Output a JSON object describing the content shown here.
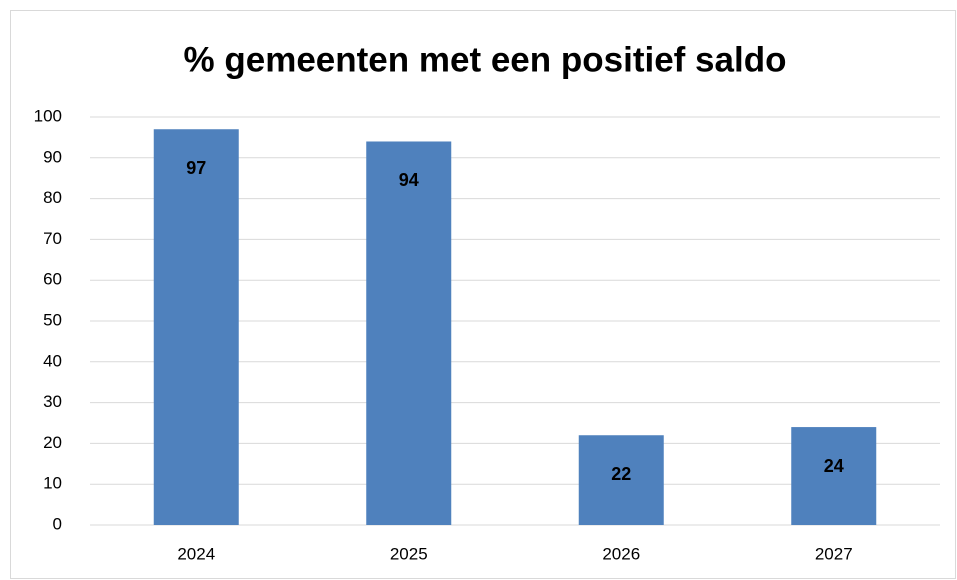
{
  "chart_data": {
    "type": "bar",
    "title": "% gemeenten met een positief saldo",
    "categories": [
      "2024",
      "2025",
      "2026",
      "2027"
    ],
    "values": [
      97,
      94,
      22,
      24
    ],
    "color": "#4f81bd",
    "ylim": [
      0,
      100
    ],
    "yticks": [
      0,
      10,
      20,
      30,
      40,
      50,
      60,
      70,
      80,
      90,
      100
    ],
    "grid": true
  }
}
